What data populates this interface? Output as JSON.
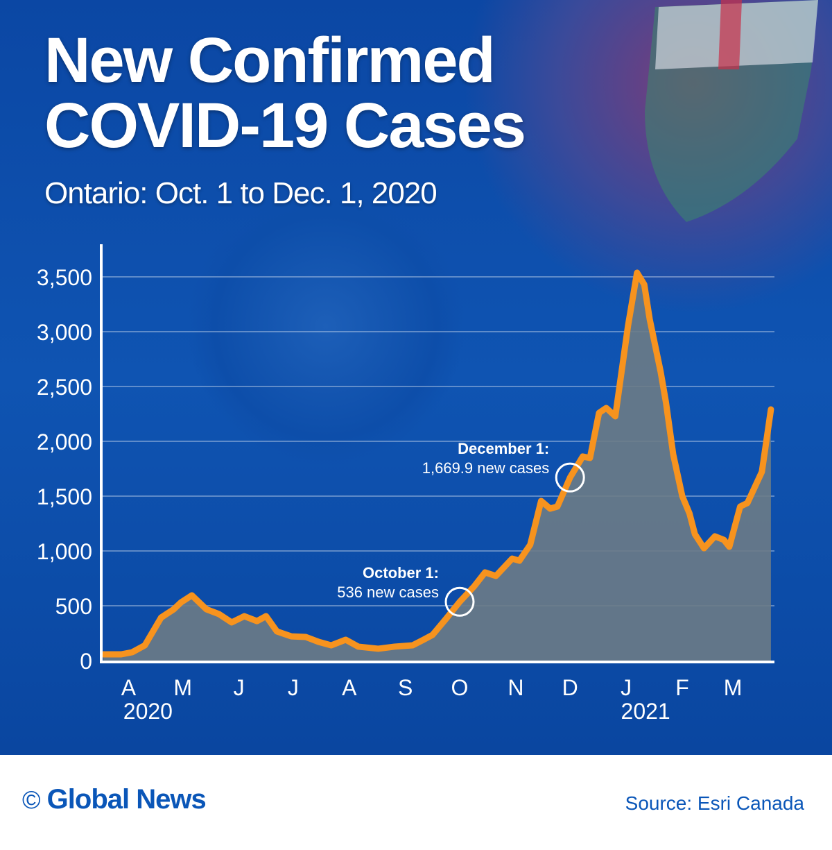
{
  "title_line1": "New Confirmed",
  "title_line2": "COVID-19 Cases",
  "subtitle": "Ontario: Oct. 1 to Dec. 1, 2020",
  "footer": {
    "brand": "Global News",
    "copyright_icon": "copyright-icon",
    "source": "Source: Esri Canada"
  },
  "colors": {
    "line": "#f7931e",
    "area": "#6b7b86",
    "background": "#0d4eaa",
    "brand": "#0a56b8"
  },
  "chart_data": {
    "type": "area",
    "title": "New Confirmed COVID-19 Cases",
    "subtitle": "Ontario: Oct. 1 to Dec. 1, 2020",
    "xlabel": "",
    "ylabel": "",
    "ylim": [
      0,
      3500
    ],
    "yticks": [
      0,
      500,
      1000,
      1500,
      2000,
      2500,
      3000,
      3500
    ],
    "ytick_labels": [
      "0",
      "500",
      "1,000",
      "1,500",
      "2,000",
      "2,500",
      "3,000",
      "3,500"
    ],
    "xticks": [
      {
        "date": "2020-04-01",
        "label": "A",
        "year": "2020"
      },
      {
        "date": "2020-05-01",
        "label": "M"
      },
      {
        "date": "2020-06-01",
        "label": "J"
      },
      {
        "date": "2020-07-01",
        "label": "J"
      },
      {
        "date": "2020-08-01",
        "label": "A"
      },
      {
        "date": "2020-09-01",
        "label": "S"
      },
      {
        "date": "2020-10-01",
        "label": "O"
      },
      {
        "date": "2020-11-01",
        "label": "N"
      },
      {
        "date": "2020-12-01",
        "label": "D"
      },
      {
        "date": "2021-01-01",
        "label": "J",
        "year": "2021"
      },
      {
        "date": "2021-02-01",
        "label": "F"
      },
      {
        "date": "2021-03-01",
        "label": "M"
      }
    ],
    "grid": "horizontal",
    "series": [
      {
        "x": [
          "2020-03-18",
          "2020-03-28",
          "2020-04-03",
          "2020-04-10",
          "2020-04-19",
          "2020-04-26",
          "2020-04-30",
          "2020-05-06",
          "2020-05-14",
          "2020-05-21",
          "2020-05-28",
          "2020-06-04",
          "2020-06-11",
          "2020-06-16",
          "2020-06-22",
          "2020-06-30",
          "2020-07-08",
          "2020-07-15",
          "2020-07-22",
          "2020-07-30",
          "2020-08-06",
          "2020-08-17",
          "2020-08-26",
          "2020-09-05",
          "2020-09-11",
          "2020-09-16",
          "2020-09-24",
          "2020-10-01",
          "2020-10-09",
          "2020-10-15",
          "2020-10-21",
          "2020-10-30",
          "2020-11-03",
          "2020-11-09",
          "2020-11-15",
          "2020-11-20",
          "2020-11-24",
          "2020-12-01",
          "2020-12-08",
          "2020-12-12",
          "2020-12-17",
          "2020-12-21",
          "2020-12-26",
          "2021-01-02",
          "2021-01-07",
          "2021-01-11",
          "2021-01-14",
          "2021-01-20",
          "2021-01-23",
          "2021-01-27",
          "2021-02-01",
          "2021-02-05",
          "2021-02-08",
          "2021-02-13",
          "2021-02-19",
          "2021-02-24",
          "2021-02-27",
          "2021-03-05",
          "2021-03-09",
          "2021-03-17",
          "2021-03-22"
        ],
        "y": [
          57,
          57,
          76,
          139,
          392,
          468,
          531,
          595,
          468,
          424,
          348,
          405,
          360,
          405,
          266,
          221,
          215,
          171,
          139,
          190,
          127,
          108,
          127,
          139,
          190,
          234,
          392,
          536,
          677,
          804,
          772,
          930,
          911,
          1057,
          1456,
          1386,
          1405,
          1670,
          1861,
          1848,
          2259,
          2304,
          2228,
          3051,
          3538,
          3430,
          3114,
          2639,
          2354,
          1880,
          1500,
          1342,
          1152,
          1025,
          1133,
          1101,
          1038,
          1405,
          1437,
          1722,
          2291
        ]
      }
    ],
    "annotations": [
      {
        "date": "2020-10-01",
        "value": 536,
        "heading": "October 1:",
        "text": "536 new cases"
      },
      {
        "date": "2020-12-01",
        "value": 1669.9,
        "heading": "December 1:",
        "text": "1,669.9 new cases"
      }
    ]
  }
}
